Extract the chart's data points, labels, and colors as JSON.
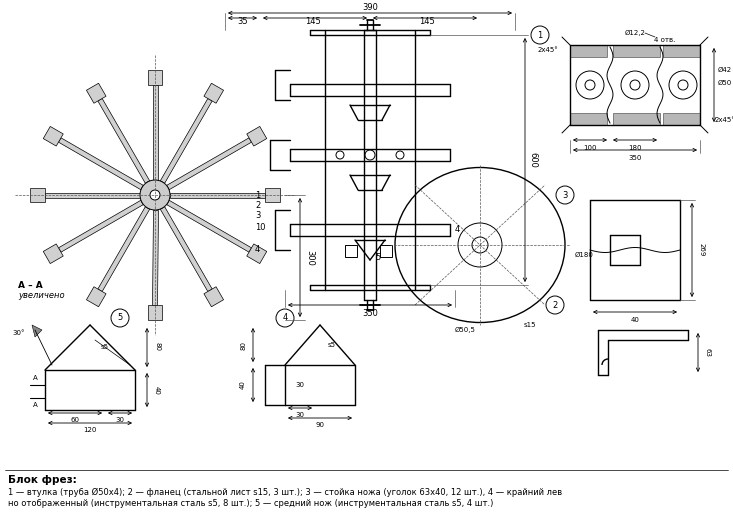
{
  "background_color": "#ffffff",
  "caption_title": "Блок фрез:",
  "caption_text": "1 — втулка (труба Ø50ї4); 2 — фланец (стальной лист s15, 3 шт.); 3 — стойка ножа (уголок 63ї40, 12 шт.), 4 — крайний лев",
  "caption_text2": "но отображенный (инструментальная сталь s5, 8 шт.); 5 — средний нож (инструментальная сталь s5, 4 шт.)"
}
